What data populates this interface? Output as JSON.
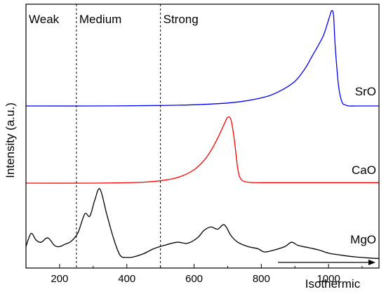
{
  "chart_data": {
    "type": "line",
    "xlabel": "Isothermic",
    "ylabel": "Intensity (a.u.)",
    "xlim": [
      100,
      1150
    ],
    "x_ticks": [
      200,
      400,
      600,
      800,
      1000
    ],
    "x_tick_labels": [
      "200",
      "400",
      "600",
      "800",
      "1000"
    ],
    "y_ticks_shown": false,
    "grid": false,
    "regions": [
      {
        "label": "Weak",
        "from": 100,
        "to": 250
      },
      {
        "label": "Medium",
        "from": 250,
        "to": 500
      },
      {
        "label": "Strong",
        "from": 500,
        "to": 1150
      }
    ],
    "region_boundaries": [
      250,
      500
    ],
    "annotation_arrow": {
      "from": 1100,
      "to": 1145
    },
    "series": [
      {
        "name": "SrO",
        "color": "#0000ff",
        "x": [
          100,
          300,
          500,
          600,
          700,
          760,
          820,
          860,
          900,
          930,
          950,
          970,
          985,
          995,
          1005,
          1010,
          1015,
          1020,
          1030,
          1040,
          1050,
          1060,
          1080,
          1100,
          1150
        ],
        "y": [
          0,
          0,
          0.005,
          0.012,
          0.03,
          0.055,
          0.1,
          0.16,
          0.25,
          0.38,
          0.5,
          0.62,
          0.72,
          0.82,
          0.93,
          0.97,
          0.92,
          0.6,
          0.2,
          0.04,
          0.01,
          0,
          0,
          0,
          0
        ]
      },
      {
        "name": "CaO",
        "color": "#ff0000",
        "x": [
          100,
          300,
          450,
          520,
          560,
          600,
          630,
          650,
          670,
          690,
          700,
          710,
          720,
          730,
          740,
          760,
          800,
          900,
          1000,
          1150
        ],
        "y": [
          0,
          0,
          0.01,
          0.035,
          0.07,
          0.14,
          0.24,
          0.34,
          0.47,
          0.62,
          0.69,
          0.66,
          0.45,
          0.15,
          0.04,
          0.01,
          0.005,
          0.005,
          0.005,
          0.005
        ]
      },
      {
        "name": "MgO",
        "color": "#000000",
        "x": [
          100,
          115,
          130,
          145,
          165,
          185,
          200,
          215,
          235,
          255,
          275,
          290,
          305,
          320,
          340,
          360,
          380,
          400,
          420,
          450,
          480,
          510,
          550,
          580,
          610,
          630,
          650,
          670,
          690,
          710,
          730,
          760,
          790,
          810,
          840,
          870,
          890,
          910,
          940,
          970,
          1000,
          1040,
          1080,
          1120,
          1150
        ],
        "y": [
          0.12,
          0.24,
          0.18,
          0.16,
          0.2,
          0.13,
          0.12,
          0.14,
          0.17,
          0.25,
          0.42,
          0.4,
          0.55,
          0.65,
          0.42,
          0.2,
          0.04,
          0.02,
          0.025,
          0.055,
          0.1,
          0.13,
          0.16,
          0.15,
          0.2,
          0.27,
          0.3,
          0.28,
          0.32,
          0.22,
          0.16,
          0.12,
          0.1,
          0.07,
          0.09,
          0.12,
          0.16,
          0.13,
          0.11,
          0.09,
          0.06,
          0.04,
          0.025,
          0.015,
          0.01
        ]
      }
    ]
  }
}
